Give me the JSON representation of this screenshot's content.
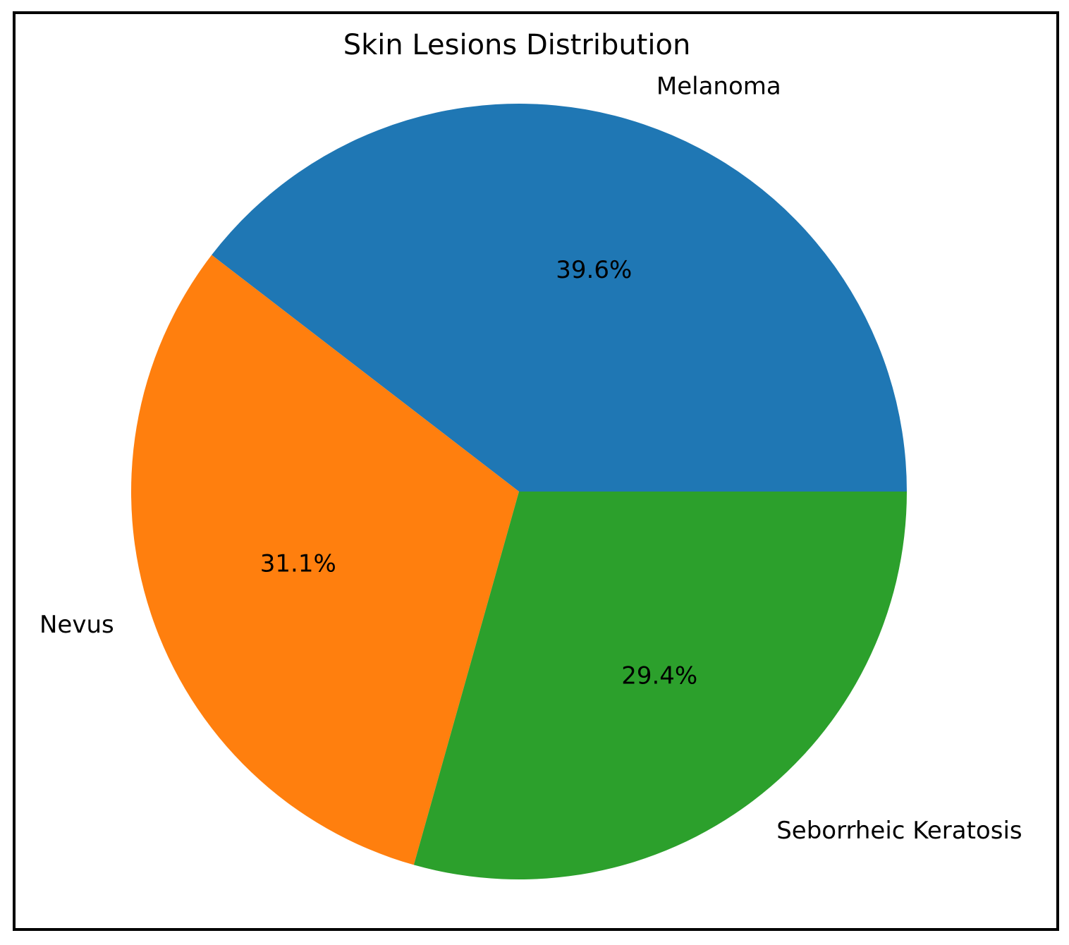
{
  "chart_data": {
    "type": "pie",
    "title": "Skin Lesions Distribution",
    "categories": [
      "Melanoma",
      "Nevus",
      "Seborrheic Keratosis"
    ],
    "values": [
      39.6,
      31.1,
      29.4
    ],
    "value_labels": [
      "39.6%",
      "31.1%",
      "29.4%"
    ],
    "colors": [
      "#1f77b4",
      "#ff7f0e",
      "#2ca02c"
    ]
  }
}
